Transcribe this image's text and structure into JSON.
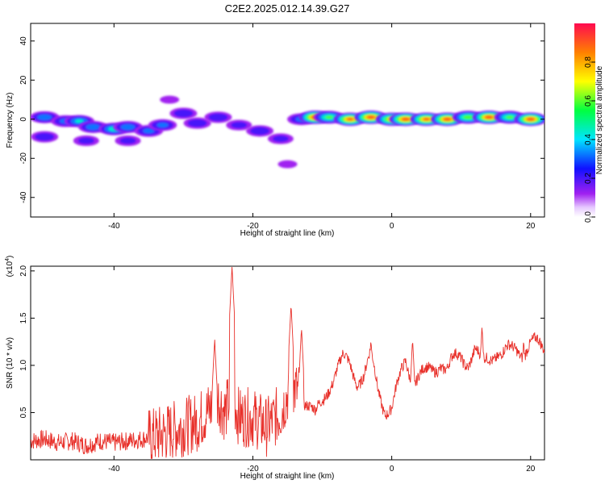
{
  "title": "C2E2.2025.012.14.39.G27",
  "chart_data": [
    {
      "type": "heatmap",
      "xlabel": "Height of straight line (km)",
      "ylabel": "Frequency (Hz)",
      "xlim": [
        -52,
        22
      ],
      "ylim": [
        -50,
        49
      ],
      "x_ticks": [
        -40,
        -20,
        0,
        20
      ],
      "y_ticks": [
        -40,
        -20,
        0,
        20,
        40
      ],
      "x_tick_labels": [
        "-40",
        "-20",
        "0",
        "20"
      ],
      "y_tick_labels": [
        "-40",
        "-20",
        "0",
        "20",
        "40"
      ],
      "grid": false,
      "colorbar": {
        "label": "Normalized spectral amplitude",
        "range": [
          0,
          1
        ],
        "ticks": [
          0.0,
          0.2,
          0.4,
          0.6,
          0.8
        ],
        "tick_labels": [
          "0.0",
          "0.2",
          "0.4",
          "0.6",
          "0.8"
        ],
        "colormap": "hsv-rainbow (white at 0, violet, blue, cyan, green, yellow, orange, red at 1)"
      },
      "blobs": [
        {
          "x": -50,
          "y": 1,
          "amp": 0.35
        },
        {
          "x": -47,
          "y": -1,
          "amp": 0.3
        },
        {
          "x": -45,
          "y": -1,
          "amp": 0.4
        },
        {
          "x": -43,
          "y": -4,
          "amp": 0.35
        },
        {
          "x": -40,
          "y": -5,
          "amp": 0.45
        },
        {
          "x": -38,
          "y": -4,
          "amp": 0.35
        },
        {
          "x": -35,
          "y": -6,
          "amp": 0.3
        },
        {
          "x": -33,
          "y": -3,
          "amp": 0.3
        },
        {
          "x": -30,
          "y": 3,
          "amp": 0.25
        },
        {
          "x": -28,
          "y": -2,
          "amp": 0.25
        },
        {
          "x": -25,
          "y": 1,
          "amp": 0.25
        },
        {
          "x": -22,
          "y": -3,
          "amp": 0.2
        },
        {
          "x": -19,
          "y": -6,
          "amp": 0.25
        },
        {
          "x": -16,
          "y": -10,
          "amp": 0.2
        },
        {
          "x": -15,
          "y": -23,
          "amp": 0.1
        },
        {
          "x": -50,
          "y": -9,
          "amp": 0.25
        },
        {
          "x": -44,
          "y": -11,
          "amp": 0.2
        },
        {
          "x": -38,
          "y": -11,
          "amp": 0.2
        },
        {
          "x": -32,
          "y": 10,
          "amp": 0.1
        },
        {
          "x": -13,
          "y": 0,
          "amp": 0.3
        },
        {
          "x": -11,
          "y": 1,
          "amp": 0.9
        },
        {
          "x": -9,
          "y": 1,
          "amp": 0.55
        },
        {
          "x": -6,
          "y": 0,
          "amp": 0.85
        },
        {
          "x": -3,
          "y": 1,
          "amp": 0.9
        },
        {
          "x": 0,
          "y": 0,
          "amp": 0.75
        },
        {
          "x": 2,
          "y": 0,
          "amp": 0.9
        },
        {
          "x": 5,
          "y": 0,
          "amp": 0.85
        },
        {
          "x": 8,
          "y": 0,
          "amp": 0.9
        },
        {
          "x": 11,
          "y": 1,
          "amp": 0.6
        },
        {
          "x": 14,
          "y": 1,
          "amp": 0.9
        },
        {
          "x": 17,
          "y": 1,
          "amp": 0.55
        },
        {
          "x": 20,
          "y": 0,
          "amp": 0.9
        }
      ]
    },
    {
      "type": "line",
      "xlabel": "Height of straight line (km)",
      "ylabel": "SNR (10 * v/v)",
      "y_multiplier": "(x10",
      "y_multiplier_exp": "4",
      "y_multiplier_close": ")",
      "xlim": [
        -52,
        22
      ],
      "ylim": [
        0,
        2.05
      ],
      "x_ticks": [
        -40,
        -20,
        0,
        20
      ],
      "y_ticks": [
        0.5,
        1.0,
        1.5,
        2.0
      ],
      "x_tick_labels": [
        "-40",
        "-20",
        "0",
        "20"
      ],
      "y_tick_labels": [
        "0.5",
        "1.0",
        "1.5",
        "2.0"
      ],
      "grid": false,
      "color": "#e8302a",
      "series": [
        {
          "x": [
            -52,
            -50,
            -48,
            -46,
            -44,
            -42,
            -40,
            -38,
            -36,
            -34,
            -32,
            -30,
            -28,
            -26,
            -25,
            -24,
            -23,
            -22,
            -20,
            -18,
            -16,
            -15,
            -14,
            -13,
            -12,
            -11,
            -10,
            -9,
            -8,
            -7,
            -6,
            -5,
            -4,
            -3,
            -2,
            -1,
            0,
            1,
            2,
            3,
            4,
            5,
            6,
            7,
            8,
            9,
            10,
            11,
            12,
            13,
            14,
            15,
            16,
            17,
            18,
            19,
            20,
            21,
            22
          ],
          "y": [
            0.2,
            0.22,
            0.18,
            0.2,
            0.15,
            0.2,
            0.18,
            0.2,
            0.22,
            0.25,
            0.3,
            0.35,
            0.4,
            0.55,
            0.65,
            0.5,
            0.7,
            0.45,
            0.45,
            0.35,
            0.5,
            0.7,
            0.75,
            0.7,
            0.6,
            0.45,
            0.6,
            0.8,
            0.95,
            1.05,
            1.0,
            0.85,
            0.9,
            1.1,
            0.75,
            0.55,
            0.55,
            0.8,
            1.05,
            0.85,
            0.9,
            0.9,
            0.95,
            1.05,
            0.95,
            1.05,
            1.1,
            1.05,
            1.15,
            1.0,
            1.1,
            1.15,
            1.1,
            1.15,
            1.2,
            1.15,
            1.2,
            1.22,
            1.2
          ]
        }
      ],
      "peaks": [
        {
          "x": -23,
          "y": 2.05
        },
        {
          "x": -25.5,
          "y": 1.28
        },
        {
          "x": -14.5,
          "y": 1.65
        },
        {
          "x": -13,
          "y": 1.4
        },
        {
          "x": -3,
          "y": 1.28
        },
        {
          "x": 3,
          "y": 1.28
        },
        {
          "x": 13,
          "y": 1.42
        },
        {
          "x": 19,
          "y": 1.28
        }
      ]
    }
  ]
}
